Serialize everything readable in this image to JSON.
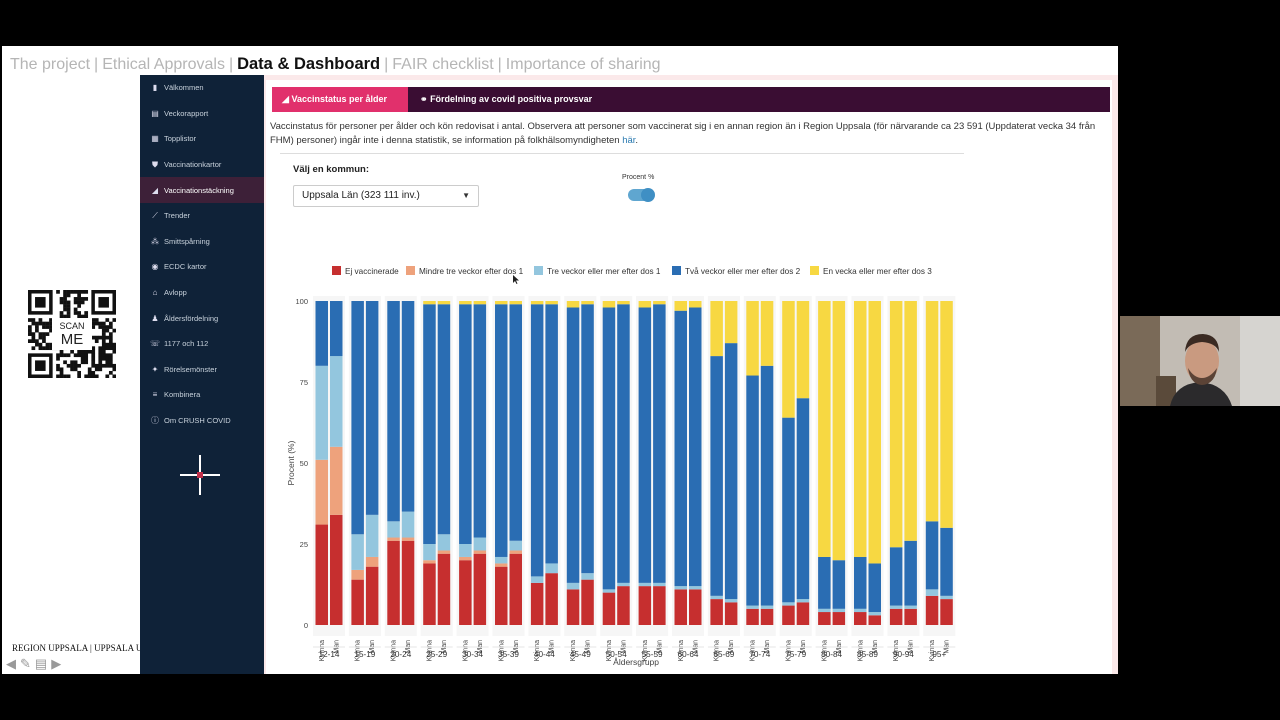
{
  "topnav": {
    "items": [
      "The project",
      "Ethical Approvals",
      "Data & Dashboard",
      "FAIR checklist",
      "Importance of sharing"
    ],
    "active": "Data & Dashboard"
  },
  "qr": {
    "label_top": "SCAN",
    "label_bottom": "ME"
  },
  "footer": {
    "region_text": "REGION UPPSALA | UPPSALA U"
  },
  "sidebar": {
    "items": [
      {
        "label": "Välkommen",
        "icon": "building-icon",
        "glyph": "▮"
      },
      {
        "label": "Veckorapport",
        "icon": "document-icon",
        "glyph": "▤"
      },
      {
        "label": "Topplistor",
        "icon": "table-icon",
        "glyph": "▦"
      },
      {
        "label": "Vaccinationkartor",
        "icon": "shield-icon",
        "glyph": "⛊"
      },
      {
        "label": "Vaccinationstäckning",
        "icon": "area-chart-icon",
        "glyph": "◢"
      },
      {
        "label": "Trender",
        "icon": "line-chart-icon",
        "glyph": "⟋"
      },
      {
        "label": "Smittspårning",
        "icon": "network-icon",
        "glyph": "⁂"
      },
      {
        "label": "ECDC kartor",
        "icon": "globe-icon",
        "glyph": "◉"
      },
      {
        "label": "Avlopp",
        "icon": "toilet-icon",
        "glyph": "⌂"
      },
      {
        "label": "Åldersfördelning",
        "icon": "users-icon",
        "glyph": "♟"
      },
      {
        "label": "1177 och 112",
        "icon": "phone-icon",
        "glyph": "☏"
      },
      {
        "label": "Rörelsemönster",
        "icon": "walking-icon",
        "glyph": "✦"
      },
      {
        "label": "Kombinera",
        "icon": "server-icon",
        "glyph": "≡"
      },
      {
        "label": "Om CRUSH COVID",
        "icon": "info-icon",
        "glyph": "ⓘ"
      }
    ],
    "active_index": 4
  },
  "tabs": [
    {
      "label": "Vaccinstatus per ålder",
      "icon": "chart-icon",
      "glyph": "◢"
    },
    {
      "label": "Fördelning av covid positiva provsvar",
      "icon": "binoculars-icon",
      "glyph": "⚭"
    }
  ],
  "description": {
    "text": "Vaccinstatus för personer per ålder och kön redovisat i antal. Observera att personer som vaccinerat sig i en annan region än i Region Uppsala (för närvarande ca 23 591 (Uppdaterat vecka 34 från FHM) personer) ingår inte i denna statistik, se information på folkhälsomyndigheten ",
    "link": "här",
    "end": "."
  },
  "controls": {
    "kommun_label": "Välj en kommun:",
    "kommun_value": "Uppsala Län (323 111 inv.)",
    "procent_label": "Procent %",
    "procent_on": true
  },
  "colors": {
    "accent": "#e1306c",
    "tabbar": "#3a0d33",
    "sidebar": "#0f2238",
    "s1": "#c62f2f",
    "s2": "#eea27c",
    "s3": "#93c6de",
    "s4": "#2a6db3",
    "s5": "#f7d842"
  },
  "chart_data": {
    "type": "bar",
    "stacked": true,
    "ylabel": "Procent (%)",
    "xlabel": "Åldersgrupp",
    "ylim": [
      0,
      100
    ],
    "yticks": [
      0,
      25,
      50,
      75,
      100
    ],
    "groups": [
      "12-14",
      "15-19",
      "20-24",
      "25-29",
      "30-34",
      "35-39",
      "40-44",
      "45-49",
      "50-54",
      "55-59",
      "60-64",
      "65-69",
      "70-74",
      "75-79",
      "80-84",
      "85-89",
      "90-94",
      "95+"
    ],
    "subcategories": [
      "Kvinna",
      "Man"
    ],
    "series_names": [
      "Ej vaccinerade",
      "Mindre tre veckor efter dos 1",
      "Tre veckor eller mer efter dos 1",
      "Två veckor eller mer efter dos 2",
      "En vecka eller mer efter dos 3"
    ],
    "values": [
      [
        [
          31,
          20,
          29,
          20,
          0
        ],
        [
          34,
          21,
          28,
          17,
          0
        ]
      ],
      [
        [
          14,
          3,
          11,
          72,
          0
        ],
        [
          18,
          3,
          13,
          66,
          0
        ]
      ],
      [
        [
          26,
          1,
          5,
          68,
          0
        ],
        [
          26,
          1,
          8,
          65,
          0
        ]
      ],
      [
        [
          19,
          1,
          5,
          74,
          1
        ],
        [
          22,
          1,
          5,
          71,
          1
        ]
      ],
      [
        [
          20,
          1,
          4,
          74,
          1
        ],
        [
          22,
          1,
          4,
          72,
          1
        ]
      ],
      [
        [
          18,
          1,
          2,
          78,
          1
        ],
        [
          22,
          1,
          3,
          73,
          1
        ]
      ],
      [
        [
          13,
          0,
          2,
          84,
          1
        ],
        [
          16,
          0,
          3,
          80,
          1
        ]
      ],
      [
        [
          11,
          0,
          2,
          85,
          2
        ],
        [
          14,
          0,
          2,
          83,
          1
        ]
      ],
      [
        [
          10,
          0,
          1,
          87,
          2
        ],
        [
          12,
          0,
          1,
          86,
          1
        ]
      ],
      [
        [
          12,
          0,
          1,
          85,
          2
        ],
        [
          12,
          0,
          1,
          86,
          1
        ]
      ],
      [
        [
          11,
          0,
          1,
          85,
          3
        ],
        [
          11,
          0,
          1,
          86,
          2
        ]
      ],
      [
        [
          8,
          0,
          1,
          74,
          17
        ],
        [
          7,
          0,
          1,
          79,
          13
        ]
      ],
      [
        [
          5,
          0,
          1,
          71,
          23
        ],
        [
          5,
          0,
          1,
          74,
          20
        ]
      ],
      [
        [
          6,
          0,
          1,
          57,
          36
        ],
        [
          7,
          0,
          1,
          62,
          30
        ]
      ],
      [
        [
          4,
          0,
          1,
          16,
          79
        ],
        [
          4,
          0,
          1,
          15,
          80
        ]
      ],
      [
        [
          4,
          0,
          1,
          16,
          79
        ],
        [
          3,
          0,
          1,
          15,
          81
        ]
      ],
      [
        [
          5,
          0,
          1,
          18,
          76
        ],
        [
          5,
          0,
          1,
          20,
          74
        ]
      ],
      [
        [
          9,
          0,
          2,
          21,
          68
        ],
        [
          8,
          0,
          1,
          21,
          70
        ]
      ]
    ]
  }
}
